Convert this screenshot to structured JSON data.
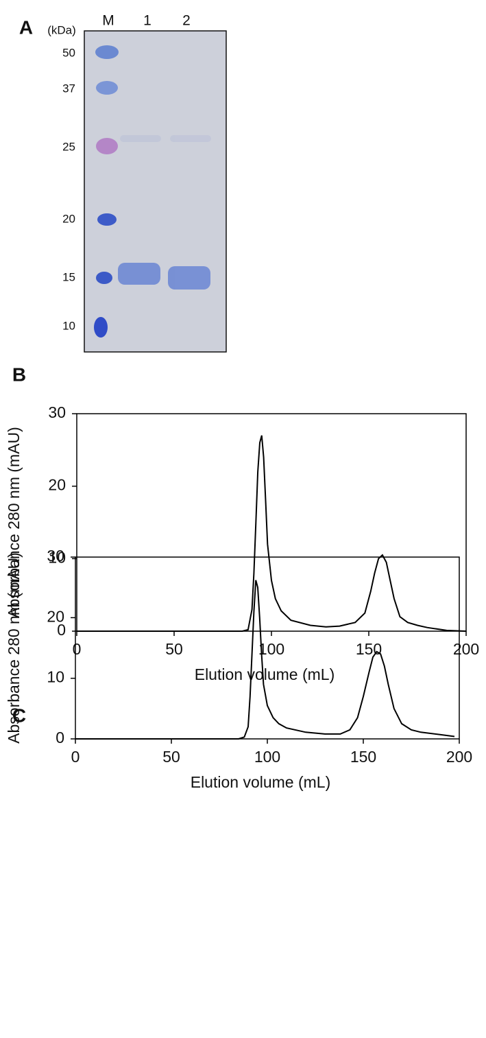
{
  "gel": {
    "panel_label": "A",
    "unit": "(kDa)",
    "lanes": [
      "M",
      "1",
      "2"
    ],
    "markers": [
      50,
      37,
      25,
      20,
      15,
      10
    ]
  },
  "chart_data": [
    {
      "type": "line",
      "panel_label": "B",
      "x_label": "Elution volume (mL)",
      "y_label": "Absorbance 280 nm (mAU)",
      "x": [
        0,
        85,
        88,
        90,
        91,
        92,
        93,
        94,
        95,
        96,
        97,
        98,
        100,
        102,
        105,
        110,
        120,
        128,
        135,
        143,
        148,
        151,
        153,
        155,
        157,
        159,
        161,
        163,
        166,
        170,
        175,
        180,
        190,
        200
      ],
      "series": [
        {
          "color": "#000000",
          "values": [
            0,
            0,
            0.2,
            3,
            8,
            15,
            22,
            26,
            27,
            24,
            18,
            12,
            7,
            4.5,
            2.8,
            1.5,
            0.8,
            0.6,
            0.7,
            1.2,
            2.5,
            5.5,
            8,
            10,
            10.5,
            9.5,
            7,
            4.5,
            2,
            1.2,
            0.8,
            0.5,
            0.1,
            0
          ]
        }
      ],
      "xlim": [
        0,
        200
      ],
      "ylim": [
        0,
        30
      ],
      "xticks": [
        0,
        50,
        100,
        150,
        200
      ],
      "yticks": [
        0,
        10,
        20,
        30
      ]
    },
    {
      "type": "line",
      "panel_label": "C",
      "x_label": "Elution volume (mL)",
      "y_label": "Absorbance 280 nm (mAU)",
      "x": [
        0,
        85,
        88,
        90,
        91,
        92,
        93,
        94,
        95,
        96,
        97,
        98,
        100,
        103,
        106,
        110,
        120,
        130,
        138,
        143,
        147,
        150,
        153,
        155,
        157,
        159,
        161,
        163,
        166,
        170,
        175,
        180,
        190,
        197.5
      ],
      "series": [
        {
          "color": "#000000",
          "values": [
            0,
            0,
            0.3,
            2,
            7,
            14,
            21,
            26.2,
            25,
            20,
            14,
            9,
            5.5,
            3.5,
            2.5,
            1.8,
            1.1,
            0.8,
            0.8,
            1.5,
            3.5,
            7,
            11,
            13.5,
            14.4,
            14,
            12,
            9,
            5,
            2.5,
            1.5,
            1.1,
            0.7,
            0.4
          ]
        }
      ],
      "xlim": [
        0,
        200
      ],
      "ylim": [
        0,
        30
      ],
      "xticks": [
        0,
        50,
        100,
        150,
        200
      ],
      "yticks": [
        0,
        10,
        20,
        30
      ]
    }
  ]
}
